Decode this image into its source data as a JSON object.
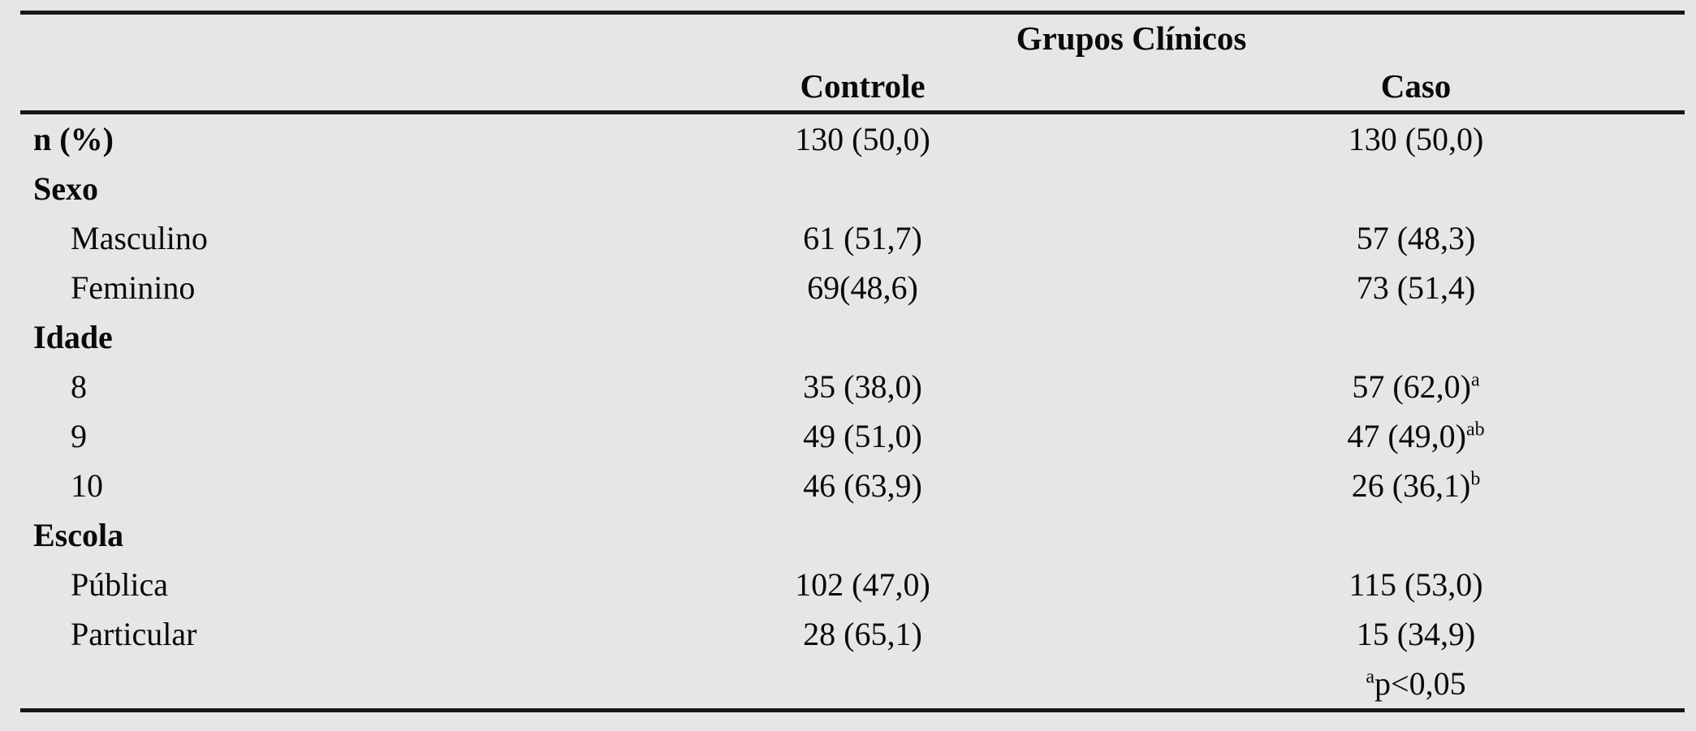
{
  "colors": {
    "background": "#e4e6e7",
    "rule": "#161616",
    "text": "#0a0a0a"
  },
  "table": {
    "group_header": "Grupos Clínicos",
    "columns": [
      "Controle",
      "Caso"
    ],
    "rows": [
      {
        "label": "n (%)",
        "controle": "130 (50,0)",
        "caso": "130 (50,0)",
        "caso_sup": ""
      },
      {
        "label": "Sexo",
        "controle": "",
        "caso": "",
        "caso_sup": ""
      },
      {
        "label": "Masculino",
        "controle": "61 (51,7)",
        "caso": "57 (48,3)",
        "caso_sup": ""
      },
      {
        "label": "Feminino",
        "controle": "69(48,6)",
        "caso": "73 (51,4)",
        "caso_sup": ""
      },
      {
        "label": "Idade",
        "controle": "",
        "caso": "",
        "caso_sup": ""
      },
      {
        "label": "8",
        "controle": "35 (38,0)",
        "caso": "57 (62,0)",
        "caso_sup": "a"
      },
      {
        "label": "9",
        "controle": "49 (51,0)",
        "caso": "47 (49,0)",
        "caso_sup": "ab"
      },
      {
        "label": "10",
        "controle": "46 (63,9)",
        "caso": "26 (36,1)",
        "caso_sup": "b"
      },
      {
        "label": "Escola",
        "controle": "",
        "caso": "",
        "caso_sup": ""
      },
      {
        "label": "Pública",
        "controle": "102 (47,0)",
        "caso": "115 (53,0)",
        "caso_sup": ""
      },
      {
        "label": "Particular",
        "controle": "28 (65,1)",
        "caso": "15 (34,9)",
        "caso_sup": ""
      }
    ],
    "footnote": {
      "sup": "a",
      "text": "p<0,05"
    }
  }
}
